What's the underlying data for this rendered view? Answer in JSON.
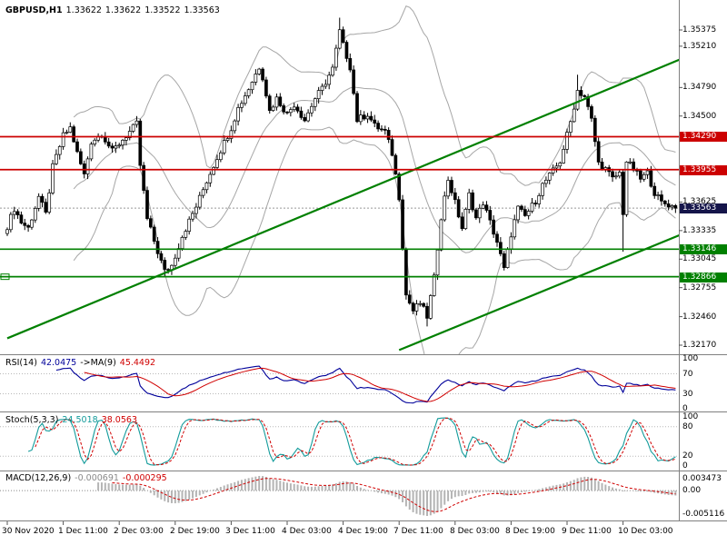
{
  "header": {
    "symbol_period": "GBPUSD,H1",
    "open": "1.33622",
    "high": "1.33622",
    "low": "1.33522",
    "close": "1.33563"
  },
  "colors": {
    "up_candle": "#ffffff",
    "down_candle": "#000000",
    "candle_border": "#000000",
    "bollinger": "#a6a6a6",
    "resistance": "#cc0000",
    "support": "#008000",
    "trend": "#008000",
    "rsi_line": "#00009a",
    "rsi_ma": "#d00000",
    "stoch_main": "#139b9b",
    "stoch_signal": "#d00000",
    "macd_hist": "#b4b4b4",
    "macd_signal": "#d00000",
    "current_price_tag": "#15154a",
    "grid_dotted": "#b8b8b8",
    "divider": "#808080"
  },
  "chart_data": {
    "type": "candlestick",
    "title": "GBPUSD,H1",
    "symbol": "GBPUSD",
    "timeframe": "H1",
    "ohlc_header": {
      "open": 1.33622,
      "high": 1.33622,
      "low": 1.33522,
      "close": 1.33563
    },
    "current_price": 1.33563,
    "bars_total": 192,
    "y_axis_ticks": [
      1.35375,
      1.3521,
      1.3479,
      1.345,
      1.33625,
      1.33335,
      1.33045,
      1.32755,
      1.3246,
      1.3217
    ],
    "x_axis_labels": [
      "30 Nov 2020",
      "1 Dec 11:00",
      "2 Dec 03:00",
      "2 Dec 19:00",
      "3 Dec 11:00",
      "4 Dec 03:00",
      "4 Dec 19:00",
      "7 Dec 11:00",
      "8 Dec 03:00",
      "8 Dec 19:00",
      "9 Dec 11:00",
      "10 Dec 03:00"
    ],
    "price_path": [
      [
        0,
        1.3338
      ],
      [
        2,
        1.3356
      ],
      [
        4,
        1.3342
      ],
      [
        6,
        1.3336
      ],
      [
        9,
        1.3368
      ],
      [
        11,
        1.335
      ],
      [
        13,
        1.3398
      ],
      [
        16,
        1.343
      ],
      [
        18,
        1.3438
      ],
      [
        20,
        1.3412
      ],
      [
        22,
        1.339
      ],
      [
        24,
        1.3424
      ],
      [
        27,
        1.3432
      ],
      [
        30,
        1.3414
      ],
      [
        34,
        1.343
      ],
      [
        37,
        1.3442
      ],
      [
        38,
        1.34
      ],
      [
        40,
        1.3345
      ],
      [
        43,
        1.3312
      ],
      [
        45,
        1.3292
      ],
      [
        47,
        1.3298
      ],
      [
        50,
        1.3328
      ],
      [
        54,
        1.3358
      ],
      [
        57,
        1.3384
      ],
      [
        60,
        1.3408
      ],
      [
        64,
        1.3438
      ],
      [
        66,
        1.3458
      ],
      [
        69,
        1.3478
      ],
      [
        72,
        1.35
      ],
      [
        73,
        1.349
      ],
      [
        75,
        1.3455
      ],
      [
        77,
        1.3468
      ],
      [
        80,
        1.3452
      ],
      [
        82,
        1.3462
      ],
      [
        85,
        1.3446
      ],
      [
        88,
        1.3468
      ],
      [
        90,
        1.3478
      ],
      [
        93,
        1.3498
      ],
      [
        95,
        1.3536
      ],
      [
        96,
        1.3522
      ],
      [
        98,
        1.35
      ],
      [
        100,
        1.3446
      ],
      [
        103,
        1.3452
      ],
      [
        105,
        1.344
      ],
      [
        108,
        1.3434
      ],
      [
        110,
        1.3412
      ],
      [
        112,
        1.3368
      ],
      [
        114,
        1.3268
      ],
      [
        116,
        1.3252
      ],
      [
        118,
        1.326
      ],
      [
        120,
        1.3246
      ],
      [
        122,
        1.3285
      ],
      [
        124,
        1.3348
      ],
      [
        126,
        1.3386
      ],
      [
        128,
        1.3362
      ],
      [
        130,
        1.3336
      ],
      [
        132,
        1.337
      ],
      [
        134,
        1.3346
      ],
      [
        136,
        1.3362
      ],
      [
        138,
        1.3342
      ],
      [
        140,
        1.3322
      ],
      [
        142,
        1.3294
      ],
      [
        144,
        1.333
      ],
      [
        146,
        1.3356
      ],
      [
        148,
        1.3348
      ],
      [
        151,
        1.3364
      ],
      [
        153,
        1.338
      ],
      [
        156,
        1.3394
      ],
      [
        158,
        1.3404
      ],
      [
        161,
        1.3444
      ],
      [
        163,
        1.3476
      ],
      [
        165,
        1.347
      ],
      [
        167,
        1.3446
      ],
      [
        169,
        1.3402
      ],
      [
        171,
        1.3396
      ],
      [
        173,
        1.3386
      ],
      [
        175,
        1.3392
      ],
      [
        176,
        1.3352
      ],
      [
        177,
        1.3404
      ],
      [
        179,
        1.3396
      ],
      [
        181,
        1.3386
      ],
      [
        183,
        1.3392
      ],
      [
        185,
        1.3372
      ],
      [
        187,
        1.3362
      ],
      [
        189,
        1.336
      ],
      [
        191,
        1.33563
      ]
    ],
    "wick_overrides": [
      {
        "bar": 45,
        "low": 1.3286
      },
      {
        "bar": 95,
        "high": 1.355
      },
      {
        "bar": 120,
        "low": 1.3236
      },
      {
        "bar": 163,
        "high": 1.3492
      },
      {
        "bar": 176,
        "low": 1.3312
      }
    ],
    "bollinger": {
      "period": 20,
      "deviation": 2
    },
    "horizontal_lines": [
      {
        "price": 1.3429,
        "label": "1.34290",
        "role": "resistance"
      },
      {
        "price": 1.33955,
        "label": "1.33955",
        "role": "resistance"
      },
      {
        "price": 1.33146,
        "label": "1.33146",
        "role": "support"
      },
      {
        "price": 1.32866,
        "label": "1.32866",
        "role": "support",
        "anchor": true
      }
    ],
    "trend_lines": [
      {
        "from_bar": 0,
        "from_price": 1.3224,
        "to_bar": 196,
        "to_price": 1.3513
      },
      {
        "from_bar": 112,
        "from_price": 1.3212,
        "to_bar": 197,
        "to_price": 1.3336
      }
    ],
    "indicators": {
      "rsi": {
        "label": "RSI(14)",
        "value": "42.0475",
        "ma_label": "->MA(9)",
        "ma_value": "45.4492",
        "scale": [
          100,
          70,
          30,
          0
        ]
      },
      "stochastic": {
        "label": "Stoch(5,3,3)",
        "k_value": "24.5018",
        "d_value": "38.0563",
        "scale": [
          100,
          80,
          20,
          0
        ]
      },
      "macd": {
        "label": "MACD(12,26,9)",
        "value": "-0.000691",
        "signal_value": "-0.000295",
        "scale_top": "0.003473",
        "scale_zero": "0.00",
        "scale_bottom": "-0.005116"
      }
    }
  }
}
